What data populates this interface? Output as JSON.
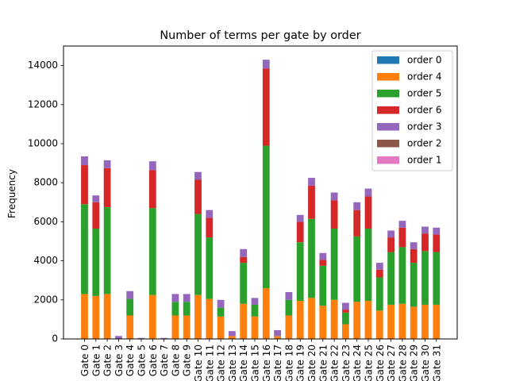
{
  "chart_data": {
    "type": "bar",
    "stacked": true,
    "title": "Number of terms per gate by order",
    "xlabel": "",
    "ylabel": "Frequency",
    "ylim": [
      0,
      15000
    ],
    "yticks": [
      0,
      2000,
      4000,
      6000,
      8000,
      10000,
      12000,
      14000
    ],
    "grid": false,
    "legend_position": "upper right",
    "categories": [
      "Gate 0",
      "Gate 1",
      "Gate 2",
      "Gate 3",
      "Gate 4",
      "Gate 5",
      "Gate 6",
      "Gate 7",
      "Gate 8",
      "Gate 9",
      "Gate 10",
      "Gate 11",
      "Gate 12",
      "Gate 13",
      "Gate 14",
      "Gate 15",
      "Gate 16",
      "Gate 17",
      "Gate 18",
      "Gate 19",
      "Gate 20",
      "Gate 21",
      "Gate 22",
      "Gate 23",
      "Gate 24",
      "Gate 25",
      "Gate 26",
      "Gate 27",
      "Gate 28",
      "Gate 29",
      "Gate 30",
      "Gate 31"
    ],
    "series": [
      {
        "name": "order 0",
        "color": "#1f77b4",
        "values": [
          0,
          0,
          0,
          0,
          0,
          0,
          0,
          0,
          0,
          0,
          0,
          0,
          0,
          0,
          0,
          0,
          0,
          0,
          0,
          0,
          0,
          0,
          0,
          0,
          0,
          0,
          0,
          0,
          0,
          0,
          0,
          0
        ]
      },
      {
        "name": "order 4",
        "color": "#ff7f0e",
        "values": [
          2300,
          2200,
          2300,
          0,
          1200,
          0,
          2250,
          0,
          1200,
          1200,
          2250,
          2050,
          1150,
          150,
          1800,
          1150,
          2600,
          150,
          1200,
          1950,
          2100,
          1700,
          2000,
          750,
          1900,
          1950,
          1450,
          1750,
          1800,
          1650,
          1750,
          1750
        ]
      },
      {
        "name": "order 5",
        "color": "#2ca02c",
        "values": [
          4600,
          3450,
          4450,
          0,
          850,
          0,
          4450,
          0,
          700,
          700,
          4150,
          3150,
          450,
          0,
          2100,
          600,
          7300,
          0,
          800,
          3000,
          4050,
          2050,
          3650,
          600,
          3350,
          3700,
          1700,
          2700,
          2900,
          2250,
          2750,
          2700
        ]
      },
      {
        "name": "order 6",
        "color": "#d62728",
        "values": [
          2000,
          1350,
          2000,
          0,
          0,
          0,
          1950,
          0,
          0,
          0,
          1750,
          1000,
          0,
          0,
          300,
          0,
          3950,
          0,
          0,
          1050,
          1700,
          300,
          1450,
          150,
          1350,
          1650,
          400,
          750,
          1000,
          700,
          900,
          900
        ]
      },
      {
        "name": "order 3",
        "color": "#9467bd",
        "values": [
          450,
          350,
          400,
          150,
          400,
          50,
          450,
          50,
          400,
          400,
          400,
          400,
          400,
          250,
          400,
          350,
          450,
          300,
          400,
          350,
          400,
          350,
          400,
          350,
          400,
          400,
          350,
          350,
          350,
          350,
          350,
          350
        ]
      },
      {
        "name": "order 2",
        "color": "#8c564b",
        "values": [
          0,
          0,
          0,
          0,
          0,
          0,
          0,
          0,
          0,
          0,
          0,
          0,
          0,
          0,
          0,
          0,
          0,
          0,
          0,
          0,
          0,
          0,
          0,
          0,
          0,
          0,
          0,
          0,
          0,
          0,
          0,
          0
        ]
      },
      {
        "name": "order 1",
        "color": "#e377c2",
        "values": [
          0,
          0,
          0,
          0,
          0,
          0,
          0,
          0,
          0,
          0,
          0,
          0,
          0,
          0,
          0,
          0,
          0,
          0,
          0,
          0,
          0,
          0,
          0,
          0,
          0,
          0,
          0,
          0,
          0,
          0,
          0,
          0
        ]
      }
    ],
    "stack_order": [
      "order 0",
      "order 4",
      "order 5",
      "order 6",
      "order 3",
      "order 2",
      "order 1"
    ]
  }
}
